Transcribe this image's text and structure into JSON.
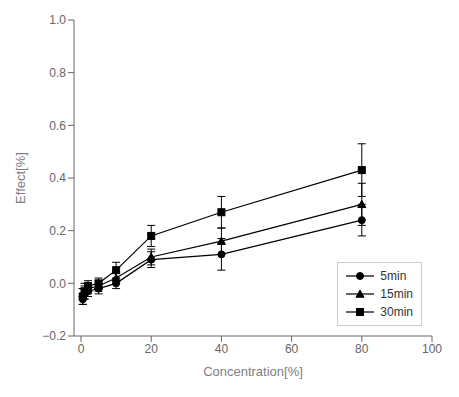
{
  "chart_data": {
    "type": "line",
    "xlabel": "Concentration[%]",
    "ylabel": "Effect[%]",
    "x": [
      0.5,
      1,
      2,
      5,
      10,
      20,
      40,
      80
    ],
    "series": [
      {
        "name": "5min",
        "color": "#000000",
        "marker": "circle",
        "values": [
          -0.06,
          -0.04,
          -0.03,
          -0.02,
          0.0,
          0.09,
          0.11,
          0.24
        ],
        "errors": [
          0.02,
          0.02,
          0.02,
          0.02,
          0.02,
          0.03,
          0.06,
          0.06
        ]
      },
      {
        "name": "15min",
        "color": "#000000",
        "marker": "triangle",
        "values": [
          -0.04,
          -0.03,
          -0.02,
          -0.01,
          0.02,
          0.1,
          0.16,
          0.3
        ],
        "errors": [
          0.02,
          0.02,
          0.02,
          0.02,
          0.02,
          0.03,
          0.05,
          0.08
        ]
      },
      {
        "name": "30min",
        "color": "#000000",
        "marker": "square",
        "values": [
          -0.05,
          -0.03,
          -0.01,
          0.0,
          0.05,
          0.18,
          0.27,
          0.43
        ],
        "errors": [
          0.03,
          0.03,
          0.02,
          0.02,
          0.03,
          0.04,
          0.06,
          0.1
        ]
      }
    ],
    "xlim": [
      -2,
      100
    ],
    "ylim": [
      -0.2,
      1.0
    ],
    "xticks": [
      0,
      20,
      40,
      60,
      80,
      100
    ],
    "yticks": [
      {
        "value": -0.2,
        "label": "−0.2"
      },
      {
        "value": 0.0,
        "label": "0.0"
      },
      0.2,
      0.4,
      0.6,
      0.8,
      {
        "value": 1.0,
        "label": "1.0"
      }
    ],
    "legend": "lower right",
    "grid": false
  }
}
